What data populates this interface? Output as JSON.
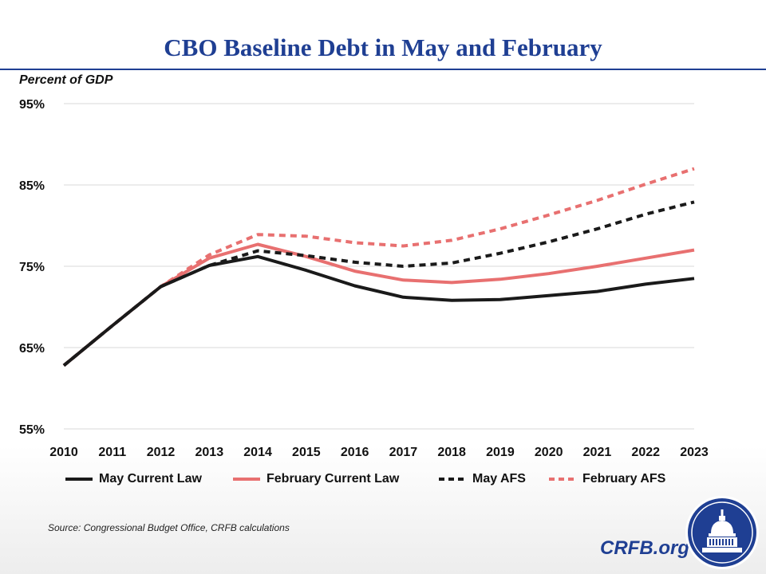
{
  "title": "CBO Baseline Debt in May and February",
  "y_unit_label": "Percent of GDP",
  "source": "Source: Congressional Budget Office, CRFB calculations",
  "brand": "CRFB.org",
  "logo_icon": "capitol-dome-seal-icon",
  "colors": {
    "title": "#1f3f93",
    "black": "#1a1a1a",
    "red": "#e87070",
    "grid": "#d9d9d9"
  },
  "chart_data": {
    "type": "line",
    "title": "CBO Baseline Debt in May and February",
    "ylabel": "Percent of GDP",
    "xlabel": "",
    "x": [
      "2010",
      "2011",
      "2012",
      "2013",
      "2014",
      "2015",
      "2016",
      "2017",
      "2018",
      "2019",
      "2020",
      "2021",
      "2022",
      "2023"
    ],
    "ylim": [
      55,
      95
    ],
    "yticks": [
      55,
      65,
      75,
      85,
      95
    ],
    "ytick_labels": [
      "55%",
      "65%",
      "75%",
      "85%",
      "95%"
    ],
    "grid": true,
    "legend_position": "bottom",
    "series": [
      {
        "name": "May Current Law",
        "color": "#1a1a1a",
        "dash": false,
        "values": [
          62.8,
          67.7,
          72.5,
          75.1,
          76.2,
          74.5,
          72.6,
          71.2,
          70.8,
          70.9,
          71.4,
          71.9,
          72.8,
          73.5
        ]
      },
      {
        "name": "February Current Law",
        "color": "#e87070",
        "dash": false,
        "values": [
          62.8,
          67.7,
          72.5,
          76.0,
          77.7,
          76.2,
          74.4,
          73.3,
          73.0,
          73.4,
          74.1,
          75.0,
          76.0,
          77.0
        ]
      },
      {
        "name": "May AFS",
        "color": "#1a1a1a",
        "dash": true,
        "values": [
          62.8,
          67.7,
          72.5,
          75.1,
          76.9,
          76.3,
          75.5,
          75.0,
          75.4,
          76.6,
          78.0,
          79.6,
          81.4,
          82.9
        ]
      },
      {
        "name": "February AFS",
        "color": "#e87070",
        "dash": true,
        "values": [
          62.8,
          67.7,
          72.5,
          76.4,
          78.9,
          78.7,
          77.9,
          77.5,
          78.2,
          79.6,
          81.3,
          83.1,
          85.1,
          87.0
        ]
      }
    ]
  }
}
